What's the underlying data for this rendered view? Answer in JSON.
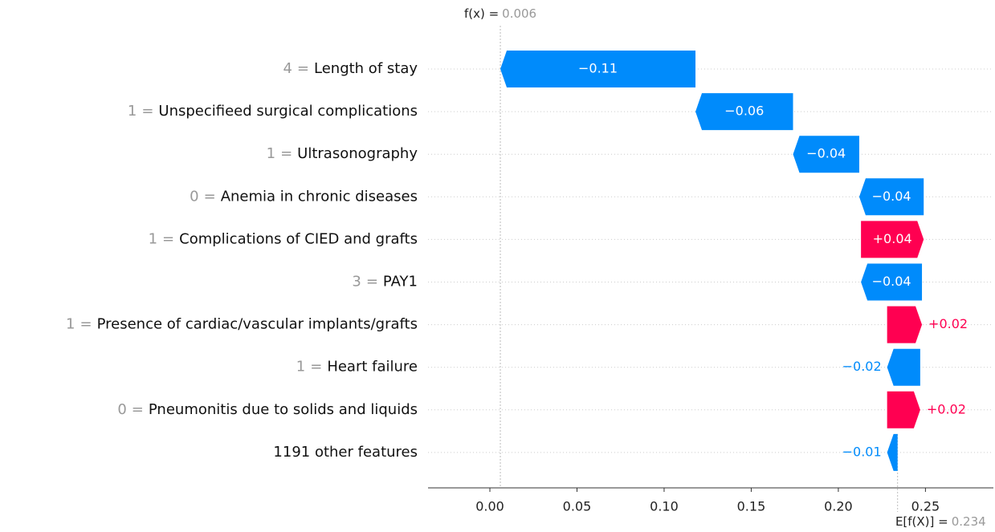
{
  "chart_data": {
    "type": "waterfall",
    "categories": [
      "Length of stay",
      "Unspecifieed surgical complications",
      "Ultrasonography",
      "Anemia in chronic diseases",
      "Complications of CIED and grafts",
      "PAY1",
      "Presence of cardiac/vascular implants/grafts",
      "Heart failure",
      "Pneumonitis due to solids and liquids",
      "1191 other features"
    ],
    "feature_values": [
      "4",
      "1",
      "1",
      "0",
      "1",
      "3",
      "1",
      "1",
      "0",
      null
    ],
    "separator": "=",
    "values": [
      -0.112,
      -0.056,
      -0.038,
      -0.037,
      0.036,
      -0.035,
      0.02,
      -0.019,
      0.019,
      -0.006
    ],
    "value_labels": [
      "−0.11",
      "−0.06",
      "−0.04",
      "−0.04",
      "+0.04",
      "−0.04",
      "+0.02",
      "−0.02",
      "+0.02",
      "−0.01"
    ],
    "positive_color": "#ff0051",
    "negative_color": "#008bfb",
    "fx_label": "f(x) =",
    "fx": 0.006,
    "base_label": "E[f(X)] =",
    "base_value": 0.234,
    "xlim": [
      -0.0355,
      0.289
    ],
    "xticks": [
      {
        "value": 0,
        "label": "0.00"
      },
      {
        "value": 0.05,
        "label": "0.05"
      },
      {
        "value": 0.1,
        "label": "0.10"
      },
      {
        "value": 0.15,
        "label": "0.15"
      },
      {
        "value": 0.2,
        "label": "0.20"
      },
      {
        "value": 0.25,
        "label": "0.25"
      }
    ]
  }
}
